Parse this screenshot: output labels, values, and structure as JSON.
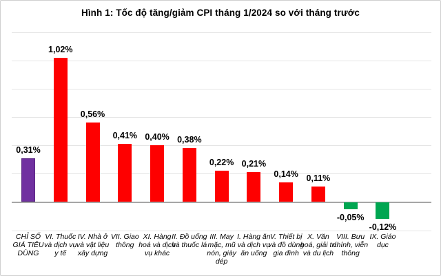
{
  "chart_data": {
    "type": "bar",
    "title": "Hình 1: Tốc độ tăng/giảm CPI tháng 1/2024 so với tháng trước",
    "categories": [
      "CHỈ SỐ GIÁ TIÊU DÙNG",
      "VI. Thuốc và dịch vụ y tế",
      "IV. Nhà ở và vật liệu xây dựng",
      "VII. Giao thông",
      "XI. Hàng hoá và dịch vụ khác",
      "II. Đồ uống và thuốc lá",
      "III. May mặc, mũ nón, giày dép",
      "I. Hàng ăn và dịch vụ ăn uống",
      "V. Thiết bị và đồ dùng gia đình",
      "X. Văn hoá, giải trí và du lịch",
      "VIII. Bưu chính, viễn thông",
      "IX. Giáo dục"
    ],
    "values": [
      0.31,
      1.02,
      0.56,
      0.41,
      0.4,
      0.38,
      0.22,
      0.21,
      0.14,
      0.11,
      -0.05,
      -0.12
    ],
    "data_labels": [
      "0,31%",
      "1,02%",
      "0,56%",
      "0,41%",
      "0,40%",
      "0,38%",
      "0,22%",
      "0,21%",
      "0,14%",
      "0,11%",
      "-0,05%",
      "-0,12%"
    ],
    "bar_colors": [
      "#7030A0",
      "#FE0000",
      "#FE0000",
      "#FE0000",
      "#FE0000",
      "#FE0000",
      "#FE0000",
      "#FE0000",
      "#FE0000",
      "#FE0000",
      "#00A651",
      "#00A651"
    ],
    "bar_border_colors": [
      "#5B2683",
      "",
      "",
      "",
      "",
      "",
      "",
      "",
      "",
      "",
      "",
      ""
    ],
    "xlabel": "",
    "ylabel": "",
    "ylim": [
      -0.2,
      1.2
    ],
    "gridline_step": 0.2,
    "grid": true,
    "legend": false,
    "colors": {
      "positive_bar": "#FE0000",
      "negative_bar": "#00A651",
      "headline_bar": "#7030A0",
      "zero_axis": "#A6A6A6",
      "gridline": "#E4E4E4"
    }
  }
}
